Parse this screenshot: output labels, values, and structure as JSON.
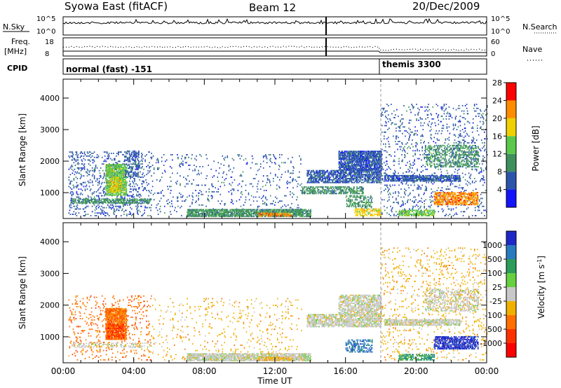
{
  "header": {
    "station": "Syowa East (fitACF)",
    "beam": "Beam 12",
    "date": "20/Dec/2009"
  },
  "summary_panels": {
    "nsky_label": "N.Sky",
    "nsky_ticks": [
      "10^5",
      "10^0"
    ],
    "nsearch_label": "N.Search",
    "nsearch_ticks": [
      "10^5",
      "10^0"
    ],
    "freq_label_1": "Freq.",
    "freq_label_2": "[MHz]",
    "freq_ticks": [
      "18",
      "8"
    ],
    "nave_label": "Nave",
    "nave_ticks": [
      "60",
      "0"
    ],
    "cpid_label": "CPID",
    "cpid_mode_1": "normal (fast) -151",
    "cpid_mode_2": "themis 3300"
  },
  "chart_data": [
    {
      "type": "heatmap",
      "title": "",
      "xlabel": "",
      "ylabel": "Slant Range [km]",
      "x_ticks": [
        "00:00",
        "04:00",
        "08:00",
        "12:00",
        "16:00",
        "20:00",
        "00:00"
      ],
      "xlim": [
        0,
        24
      ],
      "y_ticks": [
        "1000",
        "2000",
        "3000",
        "4000"
      ],
      "ylim": [
        180,
        4600
      ],
      "colorbar_label": "Power [dB]",
      "colorbar_ticks": [
        "4",
        "8",
        "12",
        "16",
        "20",
        "24",
        "28"
      ],
      "colorbar_colors": [
        "#1414ff",
        "#2a55aa",
        "#3e8f5c",
        "#5ac84a",
        "#f0d000",
        "#ff8c00",
        "#ff0000"
      ],
      "regions": [
        {
          "t0": 0.3,
          "t1": 5.0,
          "r0": 250,
          "r1": 2300,
          "level": 1,
          "density": 0.14
        },
        {
          "t0": 2.4,
          "t1": 3.6,
          "r0": 900,
          "r1": 1900,
          "level": 3,
          "density": 0.75
        },
        {
          "t0": 2.6,
          "t1": 3.3,
          "r0": 1000,
          "r1": 1500,
          "level": 4,
          "density": 0.5
        },
        {
          "t0": 0.4,
          "t1": 5.0,
          "r0": 650,
          "r1": 780,
          "level": 2,
          "density": 0.5
        },
        {
          "t0": 3.5,
          "t1": 4.3,
          "r0": 1500,
          "r1": 2300,
          "level": 1,
          "density": 0.3
        },
        {
          "t0": 5.0,
          "t1": 13.5,
          "r0": 250,
          "r1": 2200,
          "level": 1,
          "density": 0.05
        },
        {
          "t0": 7.0,
          "t1": 14.0,
          "r0": 230,
          "r1": 480,
          "level": 2,
          "density": 0.75
        },
        {
          "t0": 11.0,
          "t1": 13.0,
          "r0": 240,
          "r1": 360,
          "level": 5,
          "density": 0.5
        },
        {
          "t0": 13.8,
          "t1": 18.0,
          "r0": 1300,
          "r1": 1700,
          "level": 1,
          "density": 0.6
        },
        {
          "t0": 13.5,
          "t1": 17.0,
          "r0": 950,
          "r1": 1200,
          "level": 2,
          "density": 0.5
        },
        {
          "t0": 15.6,
          "t1": 18.0,
          "r0": 1700,
          "r1": 2300,
          "level": 1,
          "density": 0.75
        },
        {
          "t0": 16.0,
          "t1": 17.5,
          "r0": 500,
          "r1": 900,
          "level": 2,
          "density": 0.4
        },
        {
          "t0": 16.5,
          "t1": 18.0,
          "r0": 250,
          "r1": 500,
          "level": 4,
          "density": 0.5
        },
        {
          "t0": 18.0,
          "t1": 24.0,
          "r0": 250,
          "r1": 3800,
          "level": 1,
          "density": 0.08
        },
        {
          "t0": 18.2,
          "t1": 22.5,
          "r0": 1350,
          "r1": 1550,
          "level": 1,
          "density": 0.7
        },
        {
          "t0": 21.0,
          "t1": 23.5,
          "r0": 600,
          "r1": 1000,
          "level": 5,
          "density": 0.6
        },
        {
          "t0": 19.0,
          "t1": 21.0,
          "r0": 250,
          "r1": 450,
          "level": 3,
          "density": 0.6
        },
        {
          "t0": 20.5,
          "t1": 23.5,
          "r0": 1800,
          "r1": 2500,
          "level": 2,
          "density": 0.35
        }
      ]
    },
    {
      "type": "heatmap",
      "title": "",
      "xlabel": "Time UT",
      "ylabel": "Slant Range [km]",
      "x_ticks": [
        "00:00",
        "04:00",
        "08:00",
        "12:00",
        "16:00",
        "20:00",
        "00:00"
      ],
      "xlim": [
        0,
        24
      ],
      "y_ticks": [
        "1000",
        "2000",
        "3000",
        "4000"
      ],
      "ylim": [
        180,
        4600
      ],
      "colorbar_label": "Velocity [m s^-1]",
      "colorbar_ticks": [
        "1000",
        "500",
        "100",
        "25",
        "-25",
        "-100",
        "-500",
        "-1000"
      ],
      "colorbar_colors": [
        "#1e28c8",
        "#2a7ac0",
        "#2c9c5a",
        "#66d040",
        "#c8c8c8",
        "#f0b000",
        "#ff7000",
        "#ff3000",
        "#ff0000"
      ],
      "regions": [
        {
          "t0": 0.3,
          "t1": 5.0,
          "r0": 250,
          "r1": 2300,
          "level": 6,
          "density": 0.08
        },
        {
          "t0": 2.4,
          "t1": 3.6,
          "r0": 900,
          "r1": 1900,
          "level": 6,
          "density": 0.8
        },
        {
          "t0": 2.5,
          "t1": 3.4,
          "r0": 950,
          "r1": 1400,
          "level": 7,
          "density": 0.4
        },
        {
          "t0": 0.4,
          "t1": 5.0,
          "r0": 650,
          "r1": 780,
          "level": 4,
          "density": 0.3
        },
        {
          "t0": 5.0,
          "t1": 13.5,
          "r0": 250,
          "r1": 2200,
          "level": 5,
          "density": 0.04
        },
        {
          "t0": 7.0,
          "t1": 14.0,
          "r0": 230,
          "r1": 480,
          "level": 4,
          "density": 0.75
        },
        {
          "t0": 11.0,
          "t1": 13.0,
          "r0": 240,
          "r1": 360,
          "level": 5,
          "density": 0.6
        },
        {
          "t0": 13.8,
          "t1": 18.0,
          "r0": 1300,
          "r1": 1700,
          "level": 4,
          "density": 0.65
        },
        {
          "t0": 15.6,
          "t1": 18.0,
          "r0": 1700,
          "r1": 2300,
          "level": 4,
          "density": 0.6
        },
        {
          "t0": 16.0,
          "t1": 17.5,
          "r0": 500,
          "r1": 900,
          "level": 1,
          "density": 0.4
        },
        {
          "t0": 18.0,
          "t1": 24.0,
          "r0": 250,
          "r1": 3800,
          "level": 5,
          "density": 0.06
        },
        {
          "t0": 18.2,
          "t1": 22.5,
          "r0": 1350,
          "r1": 1550,
          "level": 4,
          "density": 0.7
        },
        {
          "t0": 21.0,
          "t1": 23.5,
          "r0": 600,
          "r1": 1000,
          "level": 0,
          "density": 0.6
        },
        {
          "t0": 19.0,
          "t1": 21.0,
          "r0": 250,
          "r1": 450,
          "level": 2,
          "density": 0.5
        },
        {
          "t0": 20.5,
          "t1": 23.5,
          "r0": 1800,
          "r1": 2500,
          "level": 4,
          "density": 0.35
        }
      ]
    }
  ]
}
